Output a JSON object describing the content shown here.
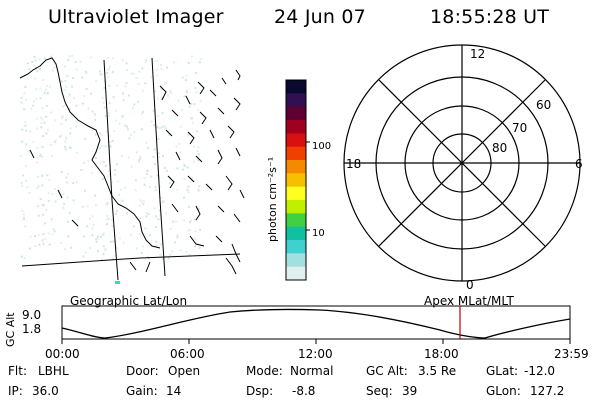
{
  "header": {
    "title": "Ultraviolet Imager",
    "date": "24 Jun 07",
    "time": "18:55:28 UT"
  },
  "colorbar": {
    "label": "photon cm⁻²s⁻¹",
    "ticks": [
      "100",
      "10"
    ],
    "colors": [
      "#0a0a30",
      "#301050",
      "#600030",
      "#a00020",
      "#d81010",
      "#f04000",
      "#f58a00",
      "#f5c000",
      "#ffff20",
      "#c0f000",
      "#40d040",
      "#10c0a0",
      "#40d0d0",
      "#a0e0e0",
      "#e0f0f0"
    ]
  },
  "polar": {
    "mlt_labels": {
      "top": "12",
      "left": "18",
      "right": "6",
      "bottom": "0"
    },
    "lat_labels": [
      "60",
      "70",
      "80"
    ]
  },
  "timeline": {
    "left_title": "Geographic Lat/Lon",
    "right_title": "Apex MLat/MLT",
    "y_axis_label": "GC Alt",
    "y_ticks": [
      "9.0",
      "1.8"
    ],
    "x_ticks": [
      "00:00",
      "06:00",
      "12:00",
      "18:00",
      "23:59"
    ],
    "marker_color": "#c00000"
  },
  "info": {
    "flt_label": "Flt:",
    "flt_value": "LBHL",
    "ip_label": "IP:",
    "ip_value": "36.0",
    "door_label": "Door:",
    "door_value": "Open",
    "gain_label": "Gain:",
    "gain_value": "14",
    "mode_label": "Mode:",
    "mode_value": "Normal",
    "dsp_label": "Dsp:",
    "dsp_value": "-8.8",
    "gcalt_label": "GC Alt:",
    "gcalt_value": "3.5 Re",
    "seq_label": "Seq:",
    "seq_value": "39",
    "glat_label": "GLat:",
    "glat_value": "-12.0",
    "glon_label": "GLon:",
    "glon_value": "127.2"
  }
}
